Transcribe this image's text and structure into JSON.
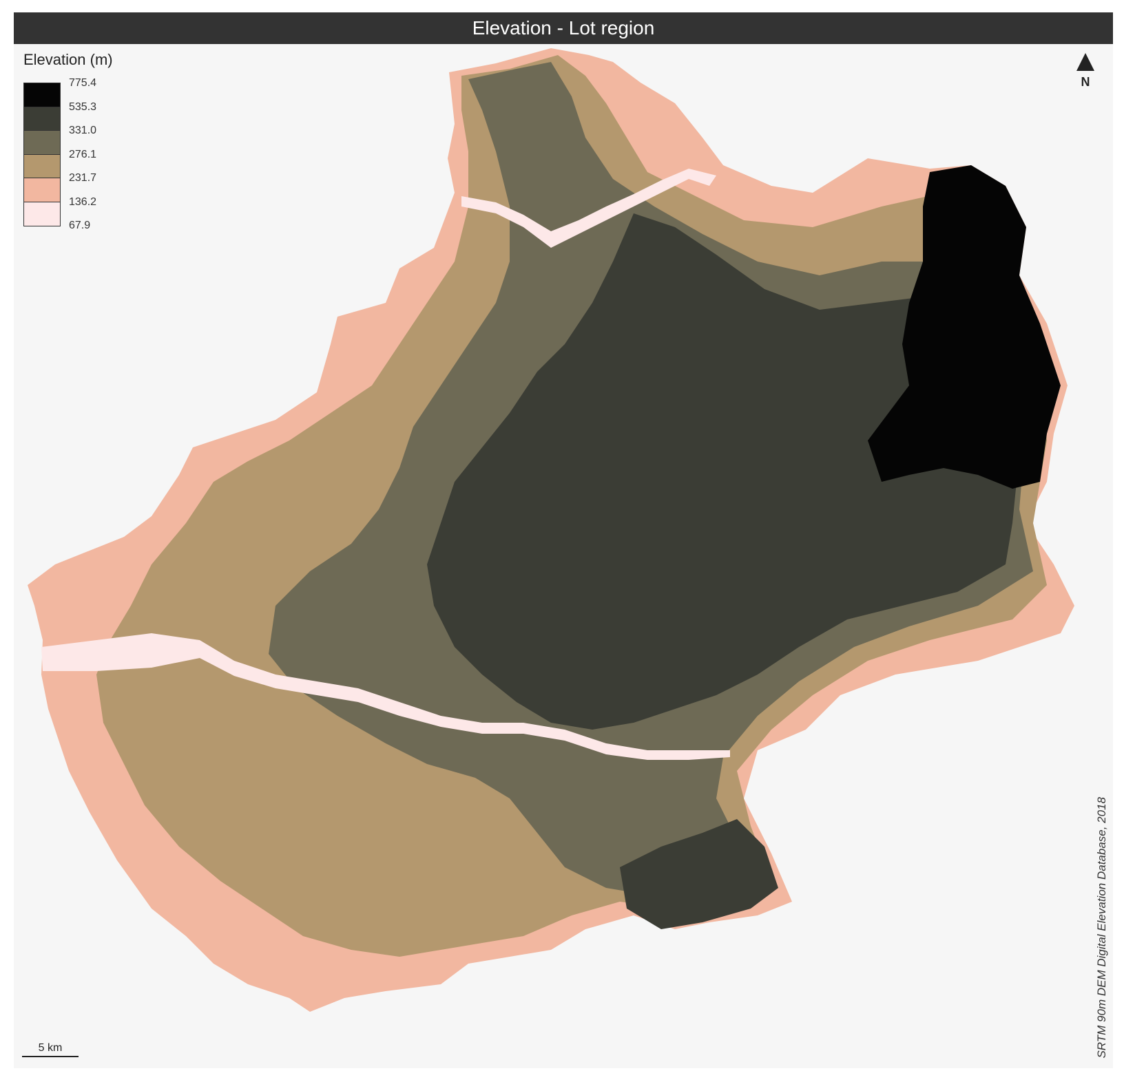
{
  "title": "Elevation - Lot region",
  "legend": {
    "title": "Elevation (m)",
    "breaks": [
      "775.4",
      "535.3",
      "331.0",
      "276.1",
      "231.7",
      "136.2",
      "67.9"
    ],
    "colors": [
      "#050505",
      "#3b3d35",
      "#6e6a55",
      "#b4986e",
      "#f2b7a0",
      "#fde8e8"
    ]
  },
  "north_arrow": {
    "label": "N",
    "icon": "north-arrow-icon"
  },
  "scale_bar": {
    "label": "5 km"
  },
  "credits": "SRTM 90m DEM Digital Elevation Database, 2018"
}
